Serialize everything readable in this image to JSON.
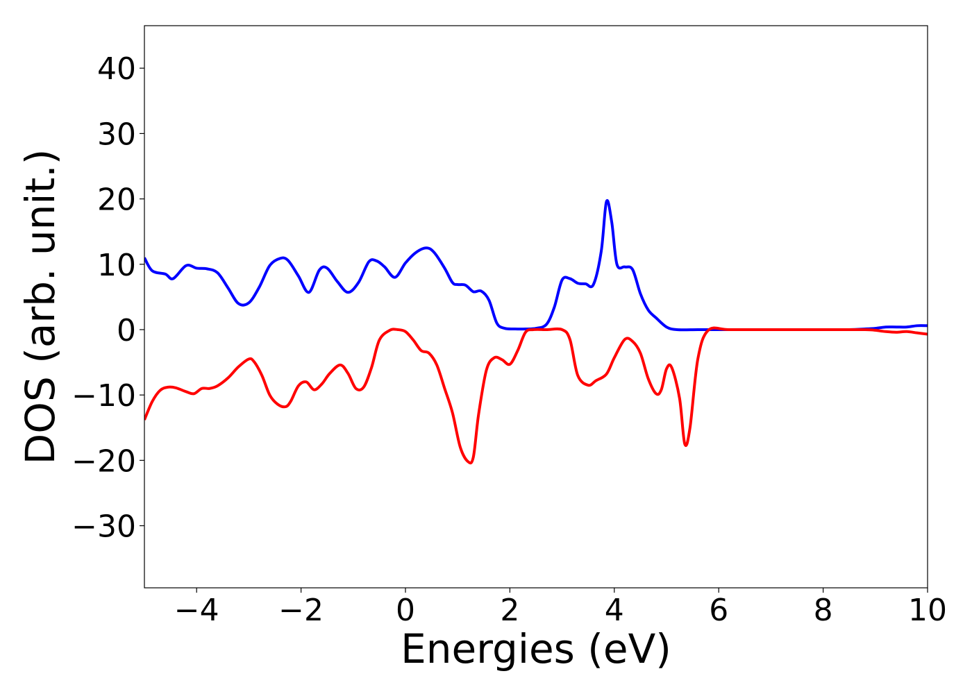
{
  "chart_data": {
    "type": "line",
    "title": "",
    "xlabel": "Energies (eV)",
    "ylabel": "DOS (arb. unit.)",
    "xlim": [
      -5,
      10
    ],
    "ylim": [
      -39.5,
      46.5
    ],
    "xticks": [
      -4,
      -2,
      0,
      2,
      4,
      6,
      8,
      10
    ],
    "xtick_labels": [
      "−4",
      "−2",
      "0",
      "2",
      "4",
      "6",
      "8",
      "10"
    ],
    "yticks": [
      40,
      30,
      20,
      10,
      0,
      -10,
      -20,
      -30
    ],
    "ytick_labels": [
      "40",
      "30",
      "20",
      "10",
      "0",
      "−10",
      "−20",
      "−30"
    ],
    "grid": false,
    "series": [
      {
        "color": "#0000ff",
        "x": [
          -5.0,
          -4.85,
          -4.6,
          -4.45,
          -4.2,
          -4.0,
          -3.8,
          -3.6,
          -3.4,
          -3.2,
          -3.0,
          -2.8,
          -2.6,
          -2.4,
          -2.25,
          -2.05,
          -1.85,
          -1.65,
          -1.5,
          -1.3,
          -1.1,
          -0.9,
          -0.7,
          -0.55,
          -0.4,
          -0.2,
          0.0,
          0.2,
          0.4,
          0.55,
          0.75,
          0.9,
          1.0,
          1.15,
          1.3,
          1.45,
          1.6,
          1.75,
          1.9,
          2.1,
          2.3,
          2.5,
          2.7,
          2.85,
          3.0,
          3.15,
          3.3,
          3.45,
          3.6,
          3.75,
          3.85,
          3.95,
          4.05,
          4.2,
          4.35,
          4.5,
          4.65,
          4.8,
          5.0,
          5.2,
          5.6,
          6.0,
          6.5,
          7.0,
          7.5,
          8.0,
          8.5,
          8.8,
          9.0,
          9.2,
          9.4,
          9.6,
          9.8,
          10.0
        ],
        "y": [
          11.0,
          9.0,
          8.5,
          7.8,
          9.8,
          9.4,
          9.3,
          8.7,
          6.4,
          4.0,
          4.1,
          6.5,
          9.8,
          10.9,
          10.6,
          8.2,
          5.7,
          9.1,
          9.4,
          7.3,
          5.7,
          7.2,
          10.4,
          10.5,
          9.6,
          8.0,
          10.2,
          11.8,
          12.5,
          11.8,
          9.4,
          7.2,
          6.9,
          6.8,
          5.8,
          5.9,
          4.5,
          1.0,
          0.2,
          0.1,
          0.1,
          0.2,
          0.8,
          3.4,
          7.6,
          7.8,
          7.1,
          7.0,
          6.9,
          12.0,
          19.6,
          16.5,
          10.0,
          9.6,
          9.2,
          5.5,
          3.0,
          1.8,
          0.4,
          0.0,
          0.0,
          0.0,
          0.0,
          0.0,
          0.0,
          0.0,
          0.0,
          0.1,
          0.2,
          0.4,
          0.4,
          0.4,
          0.6,
          0.6
        ]
      },
      {
        "color": "#ff0000",
        "x": [
          -5.0,
          -4.85,
          -4.7,
          -4.55,
          -4.4,
          -4.2,
          -4.05,
          -3.9,
          -3.75,
          -3.6,
          -3.4,
          -3.2,
          -3.0,
          -2.9,
          -2.75,
          -2.6,
          -2.45,
          -2.3,
          -2.2,
          -2.05,
          -1.9,
          -1.75,
          -1.6,
          -1.45,
          -1.25,
          -1.1,
          -0.95,
          -0.8,
          -0.65,
          -0.5,
          -0.3,
          -0.15,
          0.0,
          0.15,
          0.3,
          0.45,
          0.6,
          0.75,
          0.9,
          1.05,
          1.2,
          1.3,
          1.4,
          1.55,
          1.7,
          1.85,
          2.0,
          2.15,
          2.3,
          2.45,
          2.7,
          3.0,
          3.15,
          3.3,
          3.5,
          3.65,
          3.85,
          4.0,
          4.2,
          4.35,
          4.5,
          4.65,
          4.8,
          4.9,
          5.0,
          5.1,
          5.25,
          5.35,
          5.45,
          5.6,
          5.8,
          6.2,
          7.0,
          8.0,
          8.8,
          9.0,
          9.2,
          9.4,
          9.6,
          9.8,
          10.0
        ],
        "y": [
          -13.8,
          -11.0,
          -9.3,
          -8.8,
          -8.9,
          -9.5,
          -9.8,
          -9.0,
          -9.0,
          -8.6,
          -7.4,
          -5.7,
          -4.5,
          -4.9,
          -7.0,
          -10.0,
          -11.4,
          -11.8,
          -11.0,
          -8.6,
          -8.0,
          -9.2,
          -8.3,
          -6.7,
          -5.4,
          -6.7,
          -9.0,
          -8.8,
          -5.8,
          -1.6,
          -0.1,
          0.0,
          -0.3,
          -1.6,
          -3.2,
          -3.6,
          -5.4,
          -9.0,
          -12.7,
          -18.0,
          -20.2,
          -19.5,
          -13.0,
          -6.2,
          -4.3,
          -4.6,
          -5.3,
          -3.2,
          -0.4,
          0.0,
          0.0,
          0.0,
          -1.5,
          -7.0,
          -8.5,
          -7.8,
          -6.8,
          -4.3,
          -1.5,
          -1.8,
          -3.6,
          -7.5,
          -9.8,
          -9.2,
          -6.0,
          -5.8,
          -10.5,
          -17.5,
          -15.0,
          -4.5,
          -0.1,
          0.0,
          0.0,
          0.0,
          0.0,
          -0.1,
          -0.3,
          -0.4,
          -0.3,
          -0.5,
          -0.7
        ]
      }
    ]
  }
}
